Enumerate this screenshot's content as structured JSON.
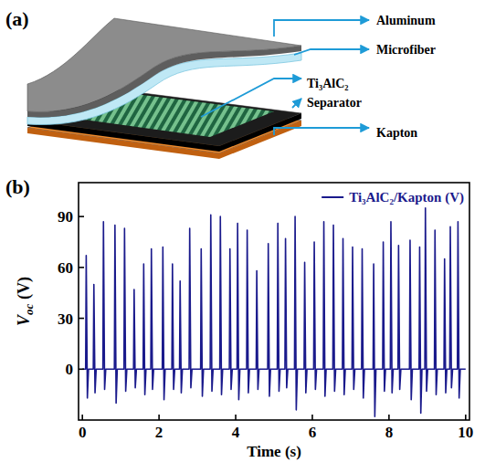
{
  "diagram": {
    "label": "(a)",
    "layers": [
      "Aluminum",
      "Microfiber",
      "Ti₃AlC₂",
      "Separator",
      "Kapton"
    ]
  },
  "chart_data": {
    "type": "line",
    "annotations": [
      "(b)"
    ],
    "x_label": "Time (s)",
    "y_label": "Voc (V)",
    "xlim": [
      -0.1,
      10.1
    ],
    "xticks": [
      0,
      2,
      4,
      6,
      8,
      10
    ],
    "ylim": [
      -30,
      110
    ],
    "yticks": [
      0,
      30,
      60,
      90
    ],
    "grid": false,
    "legend": "upper right",
    "x": [
      0,
      0.085,
      0.1,
      0.13,
      0.16,
      0.285,
      0.3,
      0.33,
      0.36,
      0.535,
      0.55,
      0.58,
      0.61,
      0.835,
      0.85,
      0.88,
      0.91,
      1.085,
      1.1,
      1.13,
      1.16,
      1.335,
      1.35,
      1.38,
      1.41,
      1.585,
      1.6,
      1.63,
      1.66,
      1.785,
      1.8,
      1.83,
      1.86,
      2.085,
      2.1,
      2.13,
      2.16,
      2.335,
      2.35,
      2.38,
      2.41,
      2.535,
      2.55,
      2.58,
      2.61,
      2.785,
      2.8,
      2.83,
      2.86,
      3.085,
      3.1,
      3.13,
      3.16,
      3.335,
      3.35,
      3.38,
      3.41,
      3.585,
      3.6,
      3.63,
      3.66,
      3.835,
      3.85,
      3.88,
      3.91,
      4.035,
      4.05,
      4.08,
      4.11,
      4.285,
      4.3,
      4.33,
      4.36,
      4.535,
      4.55,
      4.58,
      4.61,
      4.835,
      4.85,
      4.88,
      4.91,
      5.085,
      5.1,
      5.13,
      5.16,
      5.285,
      5.3,
      5.33,
      5.36,
      5.535,
      5.55,
      5.58,
      5.61,
      5.785,
      5.8,
      5.83,
      5.86,
      6.035,
      6.05,
      6.08,
      6.11,
      6.285,
      6.3,
      6.33,
      6.36,
      6.535,
      6.55,
      6.58,
      6.61,
      6.785,
      6.8,
      6.83,
      6.86,
      7.035,
      7.05,
      7.08,
      7.11,
      7.285,
      7.3,
      7.33,
      7.36,
      7.585,
      7.6,
      7.63,
      7.66,
      7.835,
      7.85,
      7.88,
      7.91,
      8.035,
      8.05,
      8.08,
      8.11,
      8.235,
      8.25,
      8.28,
      8.31,
      8.535,
      8.55,
      8.58,
      8.61,
      8.785,
      8.8,
      8.83,
      8.86,
      8.935,
      8.95,
      8.98,
      9.01,
      9.185,
      9.2,
      9.23,
      9.26,
      9.435,
      9.45,
      9.48,
      9.51,
      9.585,
      9.6,
      9.63,
      9.66,
      9.785,
      9.8,
      9.83,
      9.86,
      10
    ],
    "series": [
      {
        "name": "Ti₃AlC₂/Kapton (V)",
        "color": "#1a1a8c",
        "line_style": "solid",
        "values": [
          0,
          0,
          67,
          -17,
          0,
          0,
          50,
          -14,
          0,
          0,
          87,
          -12,
          0,
          0,
          85,
          -20,
          0,
          0,
          83,
          -13,
          0,
          0,
          47,
          -11,
          0,
          0,
          62,
          -15,
          0,
          0,
          71,
          -12,
          0,
          0,
          72,
          -18,
          0,
          0,
          62,
          -12,
          0,
          0,
          52,
          -14,
          0,
          0,
          83,
          -11,
          0,
          0,
          71,
          -16,
          0,
          0,
          91,
          -13,
          0,
          0,
          90,
          -15,
          0,
          0,
          71,
          -12,
          0,
          0,
          86,
          -18,
          0,
          0,
          82,
          -14,
          0,
          0,
          58,
          -12,
          0,
          0,
          74,
          -16,
          0,
          0,
          86,
          -13,
          0,
          0,
          77,
          -11,
          0,
          0,
          90,
          -24,
          0,
          0,
          63,
          -14,
          0,
          0,
          75,
          -12,
          0,
          0,
          87,
          -16,
          0,
          0,
          85,
          -13,
          0,
          0,
          77,
          -15,
          0,
          0,
          72,
          -12,
          0,
          0,
          71,
          -17,
          0,
          0,
          62,
          -28,
          0,
          0,
          75,
          -13,
          0,
          0,
          87,
          -14,
          0,
          0,
          73,
          -12,
          0,
          0,
          76,
          -18,
          0,
          0,
          72,
          -26,
          0,
          0,
          95,
          -13,
          0,
          0,
          82,
          -15,
          0,
          0,
          65,
          -14,
          0,
          0,
          84,
          -11,
          0,
          0,
          87,
          -17,
          0,
          0
        ]
      }
    ]
  }
}
